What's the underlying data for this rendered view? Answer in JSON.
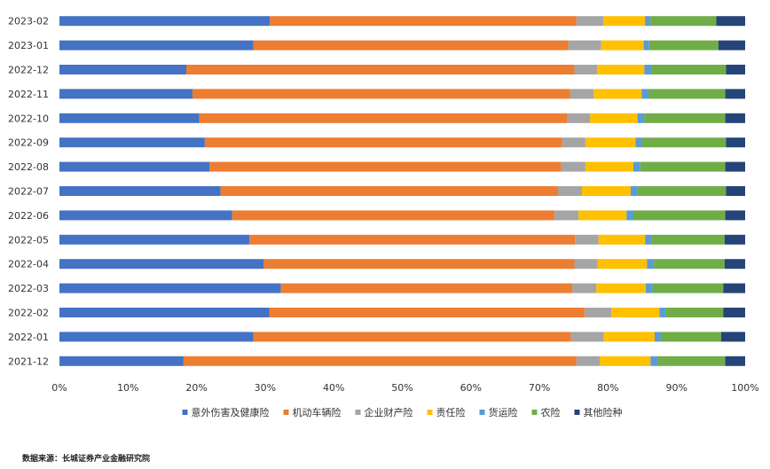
{
  "chart_data": {
    "type": "bar",
    "orientation": "horizontal",
    "stacked": "percent",
    "categories": [
      "2023-02",
      "2023-01",
      "2022-12",
      "2022-11",
      "2022-10",
      "2022-09",
      "2022-08",
      "2022-07",
      "2022-06",
      "2022-05",
      "2022-04",
      "2022-03",
      "2022-02",
      "2022-01",
      "2021-12"
    ],
    "x_ticks": [
      "0%",
      "10%",
      "20%",
      "30%",
      "40%",
      "50%",
      "60%",
      "70%",
      "80%",
      "90%",
      "100%"
    ],
    "xlim": [
      0,
      100
    ],
    "legend_position": "bottom",
    "grid": false,
    "series": [
      {
        "name": "意外伤害及健康险",
        "color": "#4472c4",
        "values": [
          30.7,
          28.3,
          18.5,
          19.4,
          20.4,
          21.2,
          21.9,
          23.5,
          25.2,
          27.7,
          29.8,
          32.3,
          30.6,
          28.3,
          18.1
        ]
      },
      {
        "name": "机动车辆险",
        "color": "#ed7d31",
        "values": [
          44.7,
          45.9,
          56.6,
          55.1,
          53.6,
          52.1,
          51.3,
          49.2,
          47.0,
          47.5,
          45.3,
          42.5,
          46.0,
          46.3,
          57.3
        ]
      },
      {
        "name": "企业财产险",
        "color": "#a5a5a5",
        "values": [
          3.9,
          4.8,
          3.3,
          3.4,
          3.4,
          3.4,
          3.5,
          3.5,
          3.5,
          3.4,
          3.4,
          3.5,
          3.9,
          4.8,
          3.4
        ]
      },
      {
        "name": "责任险",
        "color": "#ffc000",
        "values": [
          6.1,
          6.2,
          6.9,
          7.0,
          6.9,
          7.3,
          7.0,
          7.1,
          7.0,
          6.8,
          7.2,
          7.2,
          7.0,
          7.4,
          7.4
        ]
      },
      {
        "name": "货运险",
        "color": "#5b9bd5",
        "values": [
          0.8,
          0.8,
          1.0,
          1.0,
          1.0,
          1.0,
          1.0,
          1.0,
          1.0,
          1.0,
          1.0,
          1.0,
          0.9,
          0.9,
          1.0
        ]
      },
      {
        "name": "农险",
        "color": "#70ad47",
        "values": [
          9.6,
          10.1,
          10.9,
          11.2,
          11.8,
          12.2,
          12.4,
          12.9,
          13.4,
          10.6,
          10.3,
          10.3,
          8.4,
          8.8,
          9.9
        ]
      },
      {
        "name": "其他险种",
        "color": "#264478",
        "values": [
          4.2,
          3.9,
          2.8,
          2.9,
          2.9,
          2.8,
          2.9,
          2.8,
          2.9,
          3.0,
          3.0,
          3.2,
          3.2,
          3.5,
          2.9
        ]
      }
    ]
  },
  "source_text": "数据来源：长城证券产业金融研究院"
}
